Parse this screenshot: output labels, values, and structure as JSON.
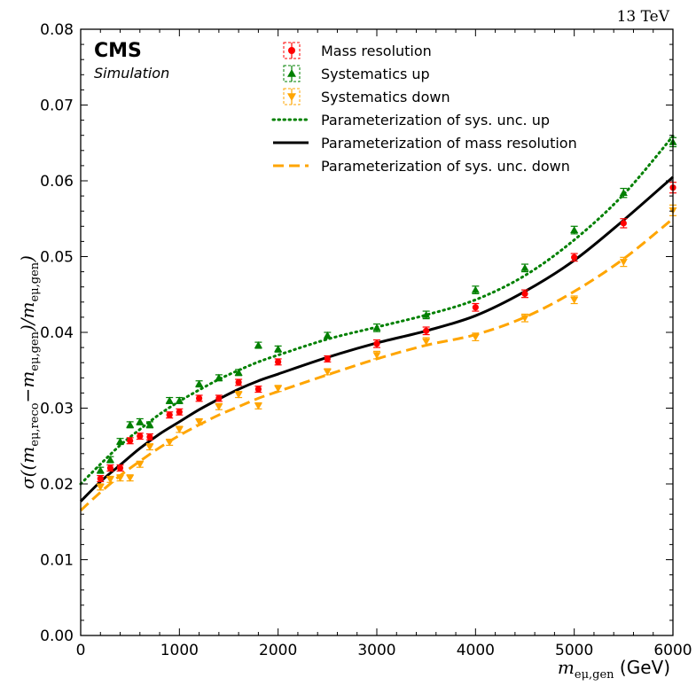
{
  "chart_data": {
    "type": "scatter",
    "energy_label": "13 TeV",
    "experiment": "CMS",
    "status": "Simulation",
    "xlabel": "m_{eμ,gen} (GeV)",
    "xlabel_parts": {
      "sym": "m",
      "sub": "eμ,gen",
      "unit": " (GeV)"
    },
    "ylabel": "σ((m_{eμ,reco} − m_{eμ,gen}) / m_{eμ,gen})",
    "ylabel_parts": {
      "pre": "σ((m",
      "sub1": "eμ,reco",
      "mid": "−m",
      "sub2": "eμ,gen",
      "post": ")/m",
      "sub3": "eμ,gen",
      "end": ")"
    },
    "xlim": [
      0,
      6000
    ],
    "ylim": [
      0.0,
      0.08
    ],
    "xticks": [
      0,
      1000,
      2000,
      3000,
      4000,
      5000,
      6000
    ],
    "xtick_labels": [
      "0",
      "1000",
      "2000",
      "3000",
      "4000",
      "5000",
      "6000"
    ],
    "yticks": [
      0.0,
      0.01,
      0.02,
      0.03,
      0.04,
      0.05,
      0.06,
      0.07,
      0.08
    ],
    "ytick_labels": [
      "0.00",
      "0.01",
      "0.02",
      "0.03",
      "0.04",
      "0.05",
      "0.06",
      "0.07",
      "0.08"
    ],
    "grid": false,
    "legend_position": "top",
    "points": [
      {
        "name": "Mass resolution",
        "color": "#ff0000",
        "marker": "circle",
        "x": [
          200,
          300,
          400,
          500,
          600,
          700,
          900,
          1000,
          1200,
          1400,
          1600,
          1800,
          2000,
          2500,
          3000,
          3500,
          4000,
          4500,
          5000,
          5500,
          6000
        ],
        "y": [
          0.0207,
          0.0221,
          0.0221,
          0.0257,
          0.0263,
          0.0262,
          0.0291,
          0.0295,
          0.0313,
          0.0313,
          0.0334,
          0.0325,
          0.0361,
          0.0365,
          0.0385,
          0.0402,
          0.0433,
          0.0451,
          0.0499,
          0.0544,
          0.0591
        ],
        "err": [
          0.0004,
          0.0004,
          0.0004,
          0.0004,
          0.0004,
          0.0004,
          0.0004,
          0.0004,
          0.0004,
          0.0004,
          0.0004,
          0.0004,
          0.0004,
          0.0004,
          0.0005,
          0.0005,
          0.0005,
          0.0005,
          0.0005,
          0.0006,
          0.0007
        ]
      },
      {
        "name": "Systematics up",
        "color": "#008000",
        "marker": "triangle-up",
        "x": [
          200,
          300,
          400,
          500,
          600,
          700,
          900,
          1000,
          1200,
          1400,
          1600,
          1800,
          2000,
          2500,
          3000,
          3500,
          4000,
          4500,
          5000,
          5500,
          6000
        ],
        "y": [
          0.0218,
          0.0232,
          0.0256,
          0.0278,
          0.0282,
          0.0278,
          0.031,
          0.031,
          0.0332,
          0.034,
          0.0347,
          0.0383,
          0.0378,
          0.0396,
          0.0406,
          0.0423,
          0.0456,
          0.0485,
          0.0535,
          0.0584,
          0.0651
        ],
        "err": [
          0.0004,
          0.0004,
          0.0004,
          0.0004,
          0.0004,
          0.0004,
          0.0004,
          0.0004,
          0.0004,
          0.0004,
          0.0004,
          0.0004,
          0.0004,
          0.0004,
          0.0005,
          0.0005,
          0.0005,
          0.0005,
          0.0005,
          0.0006,
          0.0006
        ]
      },
      {
        "name": "Systematics down",
        "color": "#ffa500",
        "marker": "triangle-down",
        "x": [
          200,
          300,
          400,
          500,
          600,
          700,
          900,
          1000,
          1200,
          1400,
          1600,
          1800,
          2000,
          2500,
          3000,
          3500,
          4000,
          4500,
          5000,
          5500,
          6000
        ],
        "y": [
          0.0196,
          0.0206,
          0.0208,
          0.0208,
          0.0226,
          0.0249,
          0.0255,
          0.0272,
          0.0282,
          0.0302,
          0.0318,
          0.0303,
          0.0326,
          0.0348,
          0.037,
          0.0388,
          0.0394,
          0.0419,
          0.0443,
          0.0493,
          0.0561
        ],
        "err": [
          0.0004,
          0.0004,
          0.0004,
          0.0004,
          0.0004,
          0.0004,
          0.0004,
          0.0004,
          0.0004,
          0.0004,
          0.0004,
          0.0004,
          0.0004,
          0.0004,
          0.0005,
          0.0005,
          0.0005,
          0.0005,
          0.0005,
          0.0006,
          0.0007
        ]
      }
    ],
    "curves": [
      {
        "name": "Parameterization of sys. unc. up",
        "color": "#008000",
        "style": "dotted",
        "x": [
          0,
          200,
          400,
          600,
          800,
          1000,
          1200,
          1400,
          1600,
          1800,
          2000,
          2500,
          3000,
          3500,
          4000,
          4500,
          5000,
          5500,
          6000
        ],
        "y": [
          0.02,
          0.0226,
          0.0251,
          0.0272,
          0.0292,
          0.0309,
          0.0324,
          0.0338,
          0.035,
          0.0361,
          0.037,
          0.0391,
          0.0407,
          0.0423,
          0.0443,
          0.0475,
          0.0522,
          0.0582,
          0.0659
        ]
      },
      {
        "name": "Parameterization of mass resolution",
        "color": "#000000",
        "style": "solid",
        "x": [
          0,
          200,
          400,
          600,
          800,
          1000,
          1200,
          1400,
          1600,
          1800,
          2000,
          2500,
          3000,
          3500,
          4000,
          4500,
          5000,
          5500,
          6000
        ],
        "y": [
          0.0177,
          0.0203,
          0.0225,
          0.0247,
          0.0266,
          0.0282,
          0.0298,
          0.0312,
          0.0325,
          0.0336,
          0.0345,
          0.0367,
          0.0386,
          0.0402,
          0.0422,
          0.0454,
          0.0495,
          0.0548,
          0.0605
        ]
      },
      {
        "name": "Parameterization of sys. unc. down",
        "color": "#ffa500",
        "style": "dashed",
        "x": [
          0,
          200,
          400,
          600,
          800,
          1000,
          1200,
          1400,
          1600,
          1800,
          2000,
          2500,
          3000,
          3500,
          4000,
          4500,
          5000,
          5500,
          6000
        ],
        "y": [
          0.0165,
          0.0189,
          0.0211,
          0.023,
          0.0248,
          0.0264,
          0.0278,
          0.0291,
          0.0302,
          0.0313,
          0.0322,
          0.0344,
          0.0365,
          0.0383,
          0.0397,
          0.042,
          0.0454,
          0.0497,
          0.055
        ]
      }
    ],
    "legend": [
      {
        "label": "Mass resolution",
        "kind": "points",
        "color": "#ff0000",
        "marker": "circle"
      },
      {
        "label": "Systematics up",
        "kind": "points",
        "color": "#008000",
        "marker": "triangle-up"
      },
      {
        "label": "Systematics down",
        "kind": "points",
        "color": "#ffa500",
        "marker": "triangle-down"
      },
      {
        "label": "Parameterization of sys. unc. up",
        "kind": "line",
        "color": "#008000",
        "style": "dotted"
      },
      {
        "label": "Parameterization of mass resolution",
        "kind": "line",
        "color": "#000000",
        "style": "solid"
      },
      {
        "label": "Parameterization of sys. unc. down",
        "kind": "line",
        "color": "#ffa500",
        "style": "dashed"
      }
    ]
  }
}
